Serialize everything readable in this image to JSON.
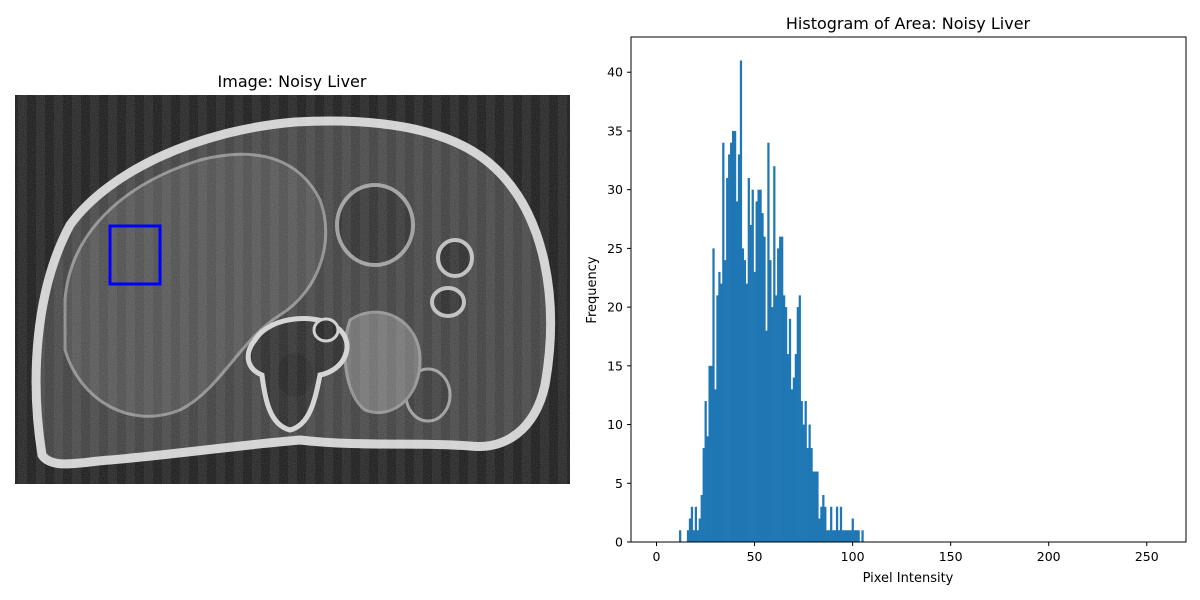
{
  "left_panel": {
    "title": "Image: Noisy Liver",
    "roi_color": "#0000ff"
  },
  "chart_data": {
    "type": "bar",
    "title": "Histogram of Area: Noisy Liver",
    "xlabel": "Pixel Intensity",
    "ylabel": "Frequency",
    "xlim": [
      -13,
      270
    ],
    "ylim": [
      0,
      43
    ],
    "xticks": [
      0,
      50,
      100,
      150,
      200,
      250
    ],
    "yticks": [
      0,
      5,
      10,
      15,
      20,
      25,
      30,
      35,
      40
    ],
    "bar_color": "#1f77b4",
    "x": [
      12,
      16,
      17,
      18,
      19,
      20,
      21,
      22,
      23,
      24,
      25,
      26,
      27,
      28,
      29,
      30,
      31,
      32,
      33,
      34,
      35,
      36,
      37,
      38,
      39,
      40,
      41,
      42,
      43,
      44,
      45,
      46,
      47,
      48,
      49,
      50,
      51,
      52,
      53,
      54,
      55,
      56,
      57,
      58,
      59,
      60,
      61,
      62,
      63,
      64,
      65,
      66,
      67,
      68,
      69,
      70,
      71,
      72,
      73,
      74,
      75,
      76,
      77,
      78,
      79,
      80,
      81,
      82,
      83,
      84,
      85,
      86,
      87,
      88,
      89,
      90,
      91,
      92,
      93,
      94,
      95,
      96,
      97,
      98,
      99,
      100,
      101,
      102,
      103,
      105
    ],
    "values": [
      1,
      1,
      2,
      3,
      1,
      3,
      1,
      2,
      4,
      8,
      12,
      9,
      15,
      15,
      25,
      13,
      21,
      23,
      22,
      34,
      24,
      31,
      33,
      34,
      35,
      35,
      29,
      33,
      41,
      25,
      24,
      22,
      31,
      27,
      30,
      23,
      29,
      30,
      30,
      28,
      26,
      18,
      34,
      24,
      20,
      32,
      21,
      25,
      26,
      26,
      21,
      20,
      16,
      19,
      13,
      14,
      16,
      20,
      21,
      12,
      10,
      12,
      8,
      10,
      8,
      6,
      6,
      6,
      2,
      3,
      4,
      3,
      1,
      1,
      3,
      1,
      1,
      3,
      1,
      3,
      1,
      1,
      1,
      1,
      1,
      2,
      1,
      1,
      1,
      1
    ]
  }
}
